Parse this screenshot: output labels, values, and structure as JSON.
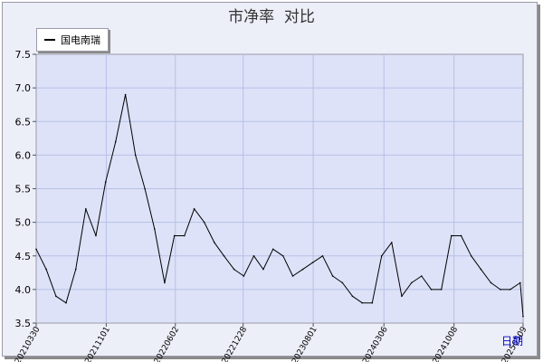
{
  "chart_data": {
    "type": "line",
    "title": "市净率  对比",
    "xlabel": "日期",
    "ylabel": "",
    "ylim": [
      3.5,
      7.5
    ],
    "y_ticks": [
      "3.5",
      "4.0",
      "4.5",
      "5.0",
      "5.5",
      "6.0",
      "6.5",
      "7.0",
      "7.5"
    ],
    "x_tick_labels": [
      "20210330",
      "20211101",
      "20220602",
      "20221228",
      "20230801",
      "20240306",
      "20241008",
      "20250509"
    ],
    "grid": true,
    "legend_position": "top-left",
    "colors": {
      "plot_bg": "#dde2f8",
      "frame_bg": "#eceef8",
      "line": "#000000",
      "grid": "#b7c0e6",
      "xlabel": "#0000cc"
    },
    "series": [
      {
        "name": "国电南瑞",
        "x": [
          "20210330",
          "20210430",
          "20210530",
          "20210630",
          "20210730",
          "20210830",
          "20210930",
          "20211030",
          "20211130",
          "20211230",
          "20220130",
          "20220228",
          "20220330",
          "20220430",
          "20220530",
          "20220630",
          "20220730",
          "20220830",
          "20220930",
          "20221030",
          "20221130",
          "20221230",
          "20230130",
          "20230228",
          "20230330",
          "20230430",
          "20230530",
          "20230630",
          "20230730",
          "20230830",
          "20230930",
          "20231030",
          "20231130",
          "20231230",
          "20240130",
          "20240228",
          "20240330",
          "20240430",
          "20240530",
          "20240630",
          "20240730",
          "20240830",
          "20240930",
          "20241030",
          "20241130",
          "20241230",
          "20250130",
          "20250228",
          "20250330",
          "20250430",
          "20250509"
        ],
        "values": [
          4.6,
          4.3,
          3.9,
          3.8,
          4.3,
          5.2,
          4.8,
          5.6,
          6.2,
          6.9,
          6.0,
          5.5,
          4.9,
          4.1,
          4.8,
          4.8,
          5.2,
          5.0,
          4.7,
          4.5,
          4.3,
          4.2,
          4.5,
          4.3,
          4.6,
          4.5,
          4.2,
          4.3,
          4.4,
          4.5,
          4.2,
          4.1,
          3.9,
          3.8,
          3.8,
          4.5,
          4.7,
          3.9,
          4.1,
          4.2,
          4.0,
          4.0,
          4.8,
          4.8,
          4.5,
          4.3,
          4.1,
          4.0,
          4.0,
          4.1,
          3.6
        ]
      }
    ]
  }
}
